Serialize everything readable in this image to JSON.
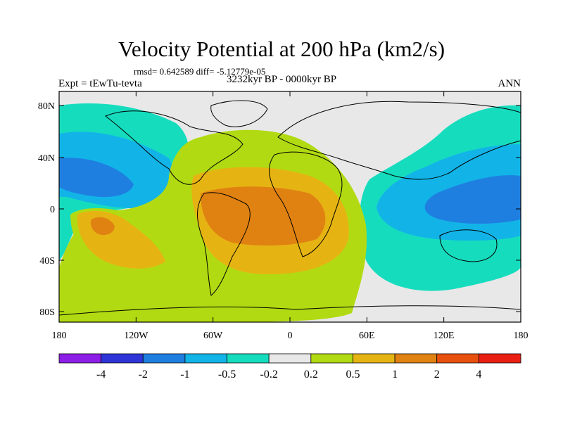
{
  "title": "Velocity Potential at 200 hPa (km2/s)",
  "stats": "rmsd= 0.642589 diff= -5.12779e-05",
  "experiment": "Expt = tEwTu-tevta",
  "period": "3232kyr BP - 0000kyr BP",
  "season": "ANN",
  "lat_ticks": [
    "80N",
    "40N",
    "0",
    "40S",
    "80S"
  ],
  "lon_ticks": [
    "180",
    "120W",
    "60W",
    "0",
    "60E",
    "120E",
    "180"
  ],
  "colorbar": {
    "colors": [
      "#8c1ee6",
      "#2d35d6",
      "#1f7fe0",
      "#12b4e8",
      "#16dcbe",
      "#e8e8e8",
      "#b2da12",
      "#e6b412",
      "#e08212",
      "#e8500e",
      "#e81f12"
    ],
    "labels": [
      "-4",
      "-2",
      "-1",
      "-0.5",
      "-0.2",
      "0.2",
      "0.5",
      "1",
      "2",
      "4"
    ]
  },
  "palette": {
    "ocean_neutral": "#e8e8e8",
    "coast": "#000000"
  }
}
